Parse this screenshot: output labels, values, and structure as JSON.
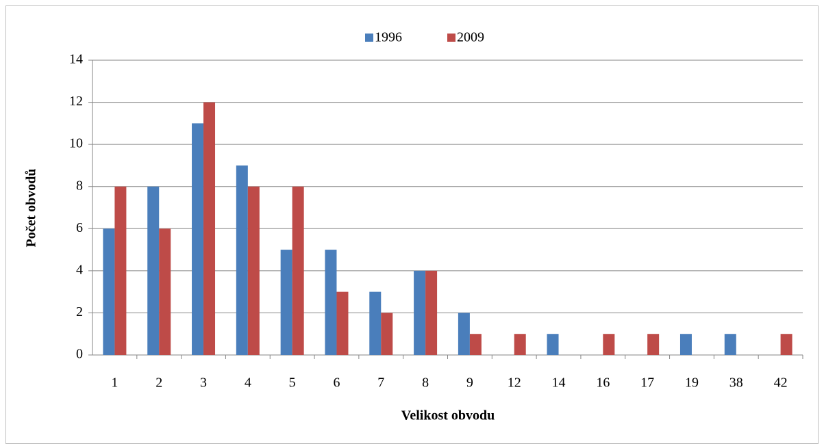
{
  "chart_data": {
    "type": "bar",
    "xlabel": "Velikost obvodu",
    "ylabel": "Počet obvodů",
    "categories": [
      "1",
      "2",
      "3",
      "4",
      "5",
      "6",
      "7",
      "8",
      "9",
      "12",
      "14",
      "16",
      "17",
      "19",
      "38",
      "42"
    ],
    "series": [
      {
        "name": "1996",
        "color": "#4a7ebb",
        "values": [
          6,
          8,
          11,
          9,
          5,
          5,
          3,
          4,
          2,
          0,
          1,
          0,
          0,
          1,
          1,
          0
        ]
      },
      {
        "name": "2009",
        "color": "#be4b48",
        "values": [
          8,
          6,
          12,
          8,
          8,
          3,
          2,
          4,
          1,
          1,
          0,
          1,
          1,
          0,
          0,
          1
        ]
      }
    ],
    "ylim": [
      0,
      14
    ],
    "yticks": [
      0,
      2,
      4,
      6,
      8,
      10,
      12,
      14
    ],
    "grid": true,
    "legend": "top"
  }
}
